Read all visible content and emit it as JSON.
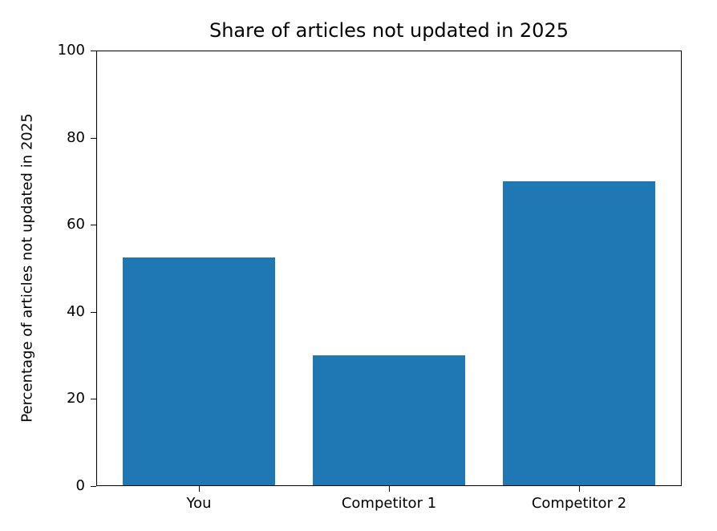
{
  "chart_data": {
    "type": "bar",
    "title": "Share of articles not updated in 2025",
    "xlabel": "",
    "ylabel": "Percentage of articles not updated in 2025",
    "categories": [
      "You",
      "Competitor 1",
      "Competitor 2"
    ],
    "values": [
      52.5,
      30,
      70
    ],
    "ylim": [
      0,
      100
    ],
    "yticks": [
      0,
      20,
      40,
      60,
      80,
      100
    ],
    "bar_color": "#1f77b4",
    "bar_width_fraction": 0.8,
    "grid": false,
    "legend_position": "none"
  }
}
